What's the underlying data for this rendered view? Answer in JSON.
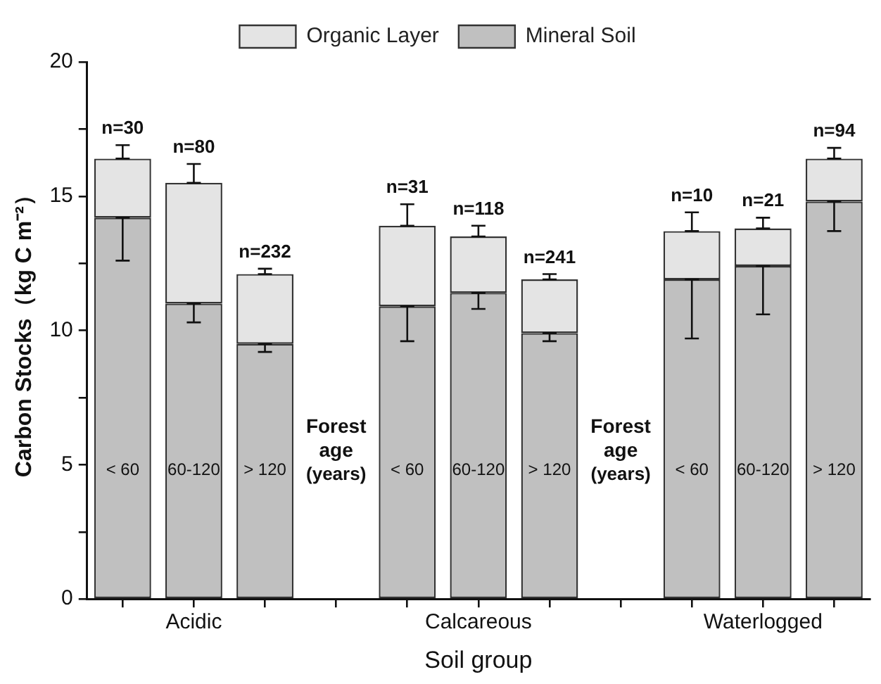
{
  "chart_data": {
    "type": "bar",
    "stacked": true,
    "xlabel": "Soil group",
    "ylabel": "Carbon Stocks（kg C m⁻²）",
    "categories": [
      null,
      "Acidic",
      null,
      null,
      null,
      "Calcareous",
      null,
      null,
      null,
      "Waterlogged",
      null
    ],
    "series": [
      {
        "name": "Mineral Soil",
        "color": "#c0c0c0",
        "values": [
          14.2,
          11.0,
          9.5,
          null,
          10.9,
          11.4,
          9.9,
          null,
          11.9,
          12.4,
          14.8
        ],
        "errors": [
          [
            12.6,
            14.2
          ],
          [
            10.3,
            11.0
          ],
          [
            9.2,
            9.5
          ],
          null,
          [
            9.6,
            10.9
          ],
          [
            10.8,
            11.4
          ],
          [
            9.6,
            9.9
          ],
          null,
          [
            9.7,
            11.9
          ],
          [
            10.6,
            12.4
          ],
          [
            13.7,
            14.8
          ]
        ]
      },
      {
        "name": "Organic Layer",
        "color": "#e4e4e4",
        "values": [
          2.2,
          4.5,
          2.6,
          null,
          3.0,
          2.1,
          2.0,
          null,
          1.8,
          1.4,
          1.6
        ],
        "errors": [
          [
            16.4,
            16.9
          ],
          [
            15.5,
            16.2
          ],
          [
            12.1,
            12.3
          ],
          null,
          [
            13.9,
            14.7
          ],
          [
            13.5,
            13.9
          ],
          [
            11.9,
            12.1
          ],
          null,
          [
            13.7,
            14.4
          ],
          [
            13.8,
            14.2
          ],
          [
            16.4,
            16.8
          ]
        ]
      }
    ],
    "ylim": [
      0,
      20
    ],
    "yticks": [
      0,
      {
        "value": 2.5,
        "label": null
      },
      5,
      {
        "value": 7.5,
        "label": null
      },
      10,
      {
        "value": 12.5,
        "label": null
      },
      15,
      {
        "value": 17.5,
        "label": null
      },
      20
    ],
    "grid": false,
    "legend": "top",
    "annotations": [
      "< 60",
      "60-120",
      "> 120",
      "< 60",
      "60-120",
      "> 120",
      "< 60",
      "60-120",
      "> 120",
      "Forest age (years)",
      "Forest age (years)",
      {
        "text": "n=30",
        "y": 16.9
      },
      {
        "text": "n=80",
        "y": 16.2
      },
      {
        "text": "n=232",
        "y": 12.3
      },
      {
        "text": "n=31",
        "y": 14.7
      },
      {
        "text": "n=118",
        "y": 13.9
      },
      {
        "text": "n=241",
        "y": 12.1
      },
      {
        "text": "n=10",
        "y": 14.4
      },
      {
        "text": "n=21",
        "y": 14.2
      },
      {
        "text": "n=94",
        "y": 16.8
      }
    ]
  }
}
